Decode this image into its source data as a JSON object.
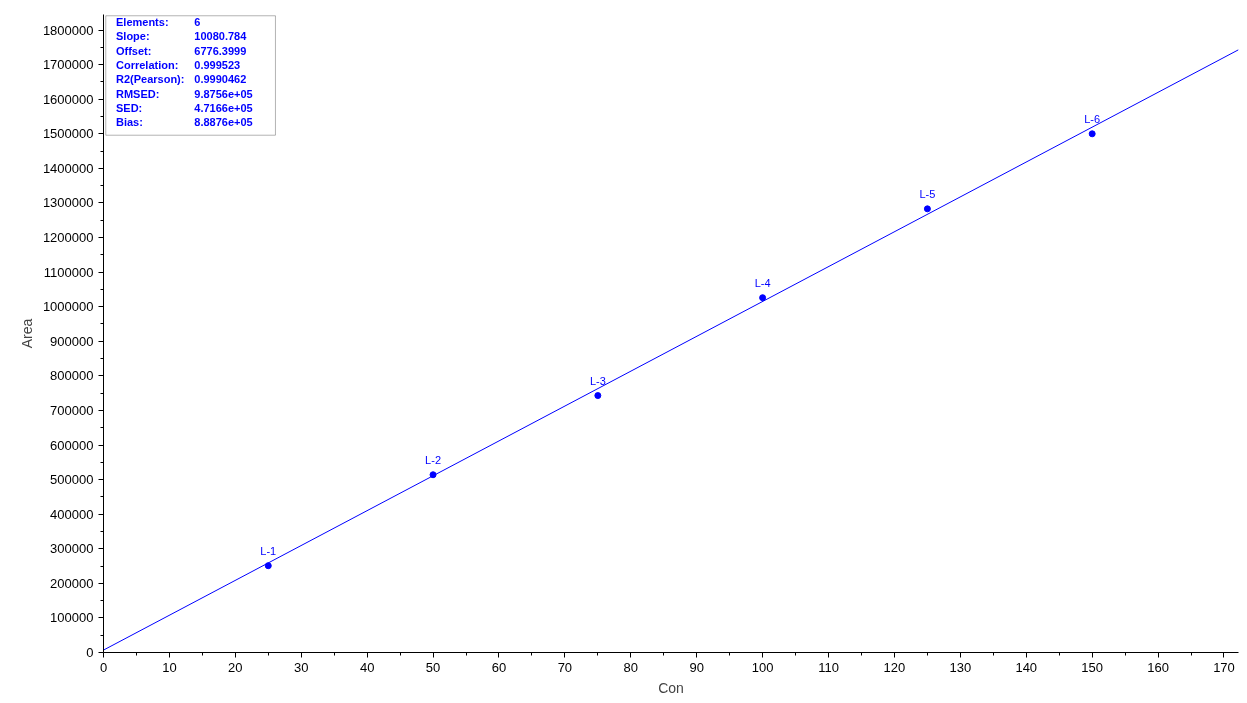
{
  "chart_data": {
    "type": "scatter",
    "xlabel": "Con",
    "ylabel": "Area",
    "xlim": [
      0,
      172.2
    ],
    "ylim": [
      0,
      1845000
    ],
    "xticks": [
      0,
      10,
      20,
      30,
      40,
      50,
      60,
      70,
      80,
      90,
      100,
      110,
      120,
      130,
      140,
      150,
      160,
      170
    ],
    "yticks": [
      0,
      100000,
      200000,
      300000,
      400000,
      500000,
      600000,
      700000,
      800000,
      900000,
      1000000,
      1100000,
      1200000,
      1300000,
      1400000,
      1500000,
      1600000,
      1700000,
      1800000
    ],
    "grid": false,
    "marker": "circle",
    "series": [
      {
        "color": "#0000ff",
        "x": [
          25,
          50,
          75,
          100,
          125,
          150
        ],
        "values": [
          251000,
          514000,
          743000,
          1026000,
          1283000,
          1500000
        ]
      },
      {
        "type": "line",
        "color": "#0000ff",
        "marker": "none",
        "x": [
          0,
          172.2
        ],
        "values": [
          7000,
          1743000
        ]
      }
    ],
    "annotations": [
      {
        "text": "L-1",
        "x": 25,
        "y": 251000
      },
      {
        "text": "L-2",
        "x": 50,
        "y": 514000
      },
      {
        "text": "L-3",
        "x": 75,
        "y": 742500
      },
      {
        "text": "L-4",
        "x": 100,
        "y": 1025700
      },
      {
        "text": "L-5",
        "x": 125,
        "y": 1282900
      },
      {
        "text": "L-6",
        "x": 150,
        "y": 1499600
      },
      "Elements:",
      "6",
      "Slope:",
      "10080.784",
      "Offset:",
      "6776.3999",
      "Correlation:",
      "0.999523",
      "R2(Pearson):",
      "0.9990462",
      "RMSED:",
      "9.8756e+05",
      "SED:",
      "4.7166e+05",
      "Bias:",
      "8.8876e+05"
    ]
  }
}
